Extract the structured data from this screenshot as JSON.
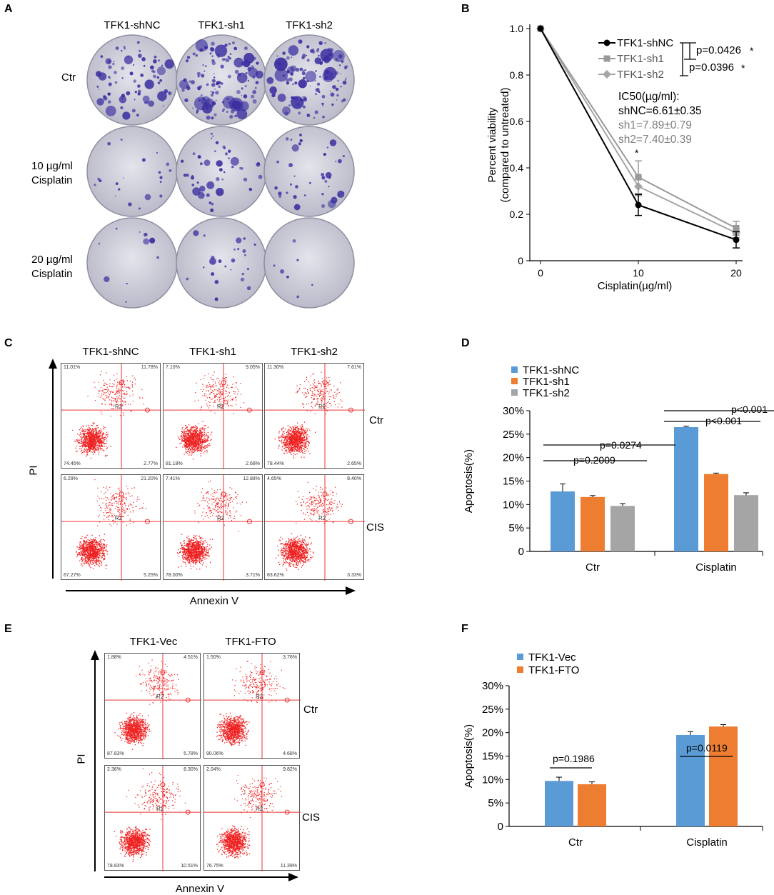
{
  "panels": {
    "a": {
      "label": "A",
      "columns": [
        "TFK1-shNC",
        "TFK1-sh1",
        "TFK1-sh2"
      ],
      "rows": [
        [
          "Ctr"
        ],
        [
          "10 µg/ml",
          "Cisplatin"
        ],
        [
          "20 µg/ml",
          "Cisplatin"
        ]
      ],
      "colony_levels": [
        [
          0.6,
          1.0,
          0.95
        ],
        [
          0.15,
          0.35,
          0.3
        ],
        [
          0.08,
          0.2,
          0.05
        ]
      ]
    },
    "b": {
      "label": "B",
      "ic50_title": "IC50(µg/ml):",
      "ic50": [
        "shNC=6.61±0.35",
        "sh1=7.89±0.79",
        "sh2=7.40±0.39"
      ],
      "pvals": [
        "p=0.0426",
        "p=0.0396"
      ],
      "star": "*"
    },
    "c": {
      "label": "C",
      "columns": [
        "TFK1-shNC",
        "TFK1-sh1",
        "TFK1-sh2"
      ],
      "rows": [
        "Ctr",
        "CIS"
      ],
      "xaxis": "Annexin V",
      "yaxis": "PI",
      "gate_label": "R2",
      "quadrants": [
        [
          [
            "11.01%",
            "11.78%",
            "74.45%",
            "2.77%"
          ],
          [
            "7.10%",
            "9.05%",
            "81.18%",
            "2.68%"
          ],
          [
            "11.30%",
            "7.61%",
            "78.44%",
            "2.65%"
          ]
        ],
        [
          [
            "6.29%",
            "21.20%",
            "67.27%",
            "5.25%"
          ],
          [
            "7.41%",
            "12.88%",
            "78.00%",
            "3.71%"
          ],
          [
            "4.65%",
            "8.40%",
            "83.62%",
            "3.33%"
          ]
        ]
      ]
    },
    "d": {
      "label": "D",
      "pvals": [
        "p=0.0274",
        "p=0.2009",
        "p<0.001",
        "p<0.001"
      ]
    },
    "e": {
      "label": "E",
      "columns": [
        "TFK1-Vec",
        "TFK1-FTO"
      ],
      "rows": [
        "Ctr",
        "CIS"
      ],
      "xaxis": "Annexin V",
      "yaxis": "PI",
      "gate_label": "R2",
      "quadrants": [
        [
          [
            "1.88%",
            "4.51%",
            "87.83%",
            "5.78%"
          ],
          [
            "1.50%",
            "3.76%",
            "90.06%",
            "4.68%"
          ]
        ],
        [
          [
            "2.36%",
            "8.30%",
            "78.83%",
            "10.51%"
          ],
          [
            "2.04%",
            "9.82%",
            "76.75%",
            "11.39%"
          ]
        ]
      ]
    },
    "f": {
      "label": "F",
      "pvals": [
        "p=0.1986",
        "p=0.0119"
      ]
    }
  },
  "chart_data": [
    {
      "id": "B",
      "type": "line",
      "x": [
        0,
        10,
        20
      ],
      "series": [
        {
          "name": "TFK1-shNC",
          "values": [
            1.0,
            0.24,
            0.09
          ],
          "errors": [
            0,
            0.045,
            0.035
          ],
          "color": "#000000",
          "marker": "circle"
        },
        {
          "name": "TFK1-sh1",
          "values": [
            1.0,
            0.36,
            0.14
          ],
          "errors": [
            0,
            0.07,
            0.03
          ],
          "color": "#999999",
          "marker": "square"
        },
        {
          "name": "TFK1-sh2",
          "values": [
            1.0,
            0.32,
            0.12
          ],
          "errors": [
            0,
            0.04,
            0.02
          ],
          "color": "#a6a6a6",
          "marker": "diamond"
        }
      ],
      "xlabel": "Cisplatin(µg/ml)",
      "ylabel": [
        "Percent viability",
        "(compared to untreated)"
      ],
      "xlim": [
        0,
        20
      ],
      "ylim": [
        0,
        1.0
      ],
      "xticks": [
        "0",
        "10",
        "20"
      ],
      "yticks": [
        "0",
        "0.2",
        "0.4",
        "0.6",
        "0.8",
        "1.0"
      ]
    },
    {
      "id": "D",
      "type": "bar",
      "categories": [
        "Ctr",
        "Cisplatin"
      ],
      "series": [
        {
          "name": "TFK1-shNC",
          "values": [
            12.8,
            26.5
          ],
          "errors": [
            1.6,
            0.2
          ],
          "color": "#5b9bd5"
        },
        {
          "name": "TFK1-sh1",
          "values": [
            11.6,
            16.5
          ],
          "errors": [
            0.3,
            0.2
          ],
          "color": "#ed7d31"
        },
        {
          "name": "TFK1-sh2",
          "values": [
            9.7,
            12.0
          ],
          "errors": [
            0.5,
            0.5
          ],
          "color": "#a5a5a5"
        }
      ],
      "ylabel": "Apoptosis(%)",
      "ylim": [
        0,
        30
      ],
      "yticks": [
        "0",
        "5%",
        "10%",
        "15%",
        "20%",
        "25%",
        "30%"
      ]
    },
    {
      "id": "F",
      "type": "bar",
      "categories": [
        "Ctr",
        "Cisplatin"
      ],
      "series": [
        {
          "name": "TFK1-Vec",
          "values": [
            9.7,
            19.5
          ],
          "errors": [
            0.8,
            0.7
          ],
          "color": "#5b9bd5"
        },
        {
          "name": "TFK1-FTO",
          "values": [
            9.0,
            21.3
          ],
          "errors": [
            0.5,
            0.4
          ],
          "color": "#ed7d31"
        }
      ],
      "ylabel": "Apoptosis(%)",
      "ylim": [
        0,
        30
      ],
      "yticks": [
        "0",
        "5%",
        "10%",
        "15%",
        "20%",
        "25%",
        "30%"
      ]
    }
  ]
}
